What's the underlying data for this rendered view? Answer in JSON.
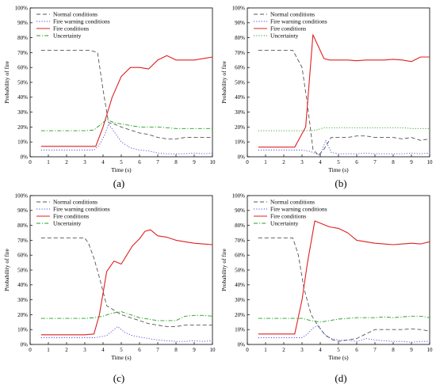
{
  "chart_data": [
    {
      "type": "line",
      "panel_label": "(a)",
      "xlabel": "Time (s)",
      "ylabel": "Probability of fire",
      "xlim": [
        0,
        10
      ],
      "ylim": [
        0,
        100
      ],
      "x_ticks": [
        "0",
        "1",
        "2",
        "3",
        "4",
        "5",
        "6",
        "7",
        "8",
        "9",
        "10"
      ],
      "y_ticks": [
        "0%",
        "10%",
        "20%",
        "30%",
        "40%",
        "50%",
        "60%",
        "70%",
        "80%",
        "90%",
        "100%"
      ],
      "legend_position": "top-left",
      "series": [
        {
          "name": "Normal conditions",
          "style": "dash",
          "color": "#555555",
          "x": [
            0.6,
            1,
            2,
            3,
            3.3,
            3.7,
            4.0,
            4.3,
            4.6,
            5,
            5.5,
            6,
            6.5,
            7,
            7.5,
            8,
            8.5,
            9,
            9.5,
            10
          ],
          "y": [
            71.5,
            71.5,
            71.5,
            71.5,
            71.5,
            70,
            45,
            23,
            22,
            20,
            18,
            16,
            15,
            13,
            12,
            12,
            13,
            13,
            13,
            13
          ]
        },
        {
          "name": "Fire warning conditions",
          "style": "dot",
          "color": "#4a4ad8",
          "x": [
            0.6,
            1,
            2,
            3,
            3.5,
            3.8,
            4.1,
            4.3,
            4.6,
            5,
            5.5,
            6,
            6.5,
            7,
            7.5,
            8,
            8.5,
            9,
            9.5,
            10
          ],
          "y": [
            4.5,
            4.5,
            4.5,
            4.5,
            4.5,
            8,
            15,
            22,
            17,
            10,
            6,
            4.5,
            4,
            2.5,
            2,
            2,
            2,
            2.5,
            2,
            2.5
          ]
        },
        {
          "name": "Fire conditions",
          "style": "solid",
          "color": "#e02020",
          "x": [
            0.6,
            1,
            2,
            3,
            3.6,
            4.0,
            4.5,
            5.0,
            5.5,
            6.0,
            6.5,
            7.0,
            7.5,
            8.0,
            8.5,
            9.0,
            9.5,
            10
          ],
          "y": [
            7,
            7,
            7,
            7,
            7,
            20,
            40,
            54,
            60,
            60,
            59,
            65,
            68,
            65,
            65,
            65,
            66,
            67
          ]
        },
        {
          "name": "Uncertainty",
          "style": "dashdot",
          "color": "#22a022",
          "x": [
            0.6,
            1,
            2,
            3,
            3.5,
            3.8,
            4.2,
            4.6,
            5,
            5.5,
            6,
            6.5,
            7,
            7.5,
            8,
            8.5,
            9,
            9.5,
            10
          ],
          "y": [
            17.5,
            17.5,
            17.5,
            17.5,
            18,
            21,
            25,
            23,
            22,
            21,
            20,
            20,
            20,
            19.5,
            19,
            19,
            19,
            19,
            19
          ]
        }
      ]
    },
    {
      "type": "line",
      "panel_label": "(b)",
      "xlabel": "Time (s)",
      "ylabel": "Probability of fire",
      "xlim": [
        0,
        10
      ],
      "ylim": [
        0,
        100
      ],
      "x_ticks": [
        "0",
        "1",
        "2",
        "3",
        "4",
        "5",
        "6",
        "7",
        "8",
        "9",
        "10"
      ],
      "y_ticks": [
        "0%",
        "10%",
        "20%",
        "30%",
        "40%",
        "50%",
        "60%",
        "70%",
        "80%",
        "90%",
        "100%"
      ],
      "legend_position": "top-left",
      "series": [
        {
          "name": "Normal conditions",
          "style": "dash",
          "color": "#555555",
          "x": [
            0.6,
            1,
            2,
            2.5,
            3,
            3.3,
            3.6,
            3.9,
            4.2,
            4.6,
            5,
            5.5,
            6,
            6.5,
            7,
            7.5,
            8,
            8.5,
            9,
            9.5,
            10
          ],
          "y": [
            71.5,
            71.5,
            71.5,
            71.5,
            60,
            35,
            5,
            1,
            5,
            13,
            13,
            13,
            14,
            14,
            13,
            13,
            13,
            12,
            13,
            11,
            12
          ]
        },
        {
          "name": "Fire warning conditions",
          "style": "dot",
          "color": "#4a4ad8",
          "x": [
            0.6,
            1,
            2,
            3,
            3.3,
            3.6,
            4.0,
            4.3,
            4.6,
            5,
            5.5,
            6,
            6.5,
            7,
            7.5,
            8,
            8.5,
            9,
            9.5,
            10
          ],
          "y": [
            4.5,
            4.5,
            4.5,
            4.5,
            4,
            3,
            1,
            11,
            3,
            2,
            2,
            2,
            2.5,
            2,
            2,
            2,
            2,
            2.5,
            2,
            2.5
          ]
        },
        {
          "name": "Fire conditions",
          "style": "solid",
          "color": "#e02020",
          "x": [
            0.6,
            1,
            2,
            2.6,
            3.2,
            3.6,
            3.9,
            4.2,
            4.5,
            5,
            5.5,
            6,
            6.5,
            7,
            7.5,
            8,
            8.5,
            9,
            9.5,
            10
          ],
          "y": [
            6.5,
            6.5,
            6.5,
            6.5,
            20,
            82,
            74,
            66,
            65,
            65,
            65,
            64.5,
            65,
            65,
            65,
            65.5,
            65,
            64,
            67,
            67
          ]
        },
        {
          "name": "Uncertainty",
          "style": "dot",
          "color": "#22a022",
          "x": [
            0.6,
            1,
            2,
            2.5,
            3,
            3.5,
            3.8,
            4.2,
            4.6,
            5,
            5.5,
            6,
            6.5,
            7,
            7.5,
            8,
            8.5,
            9,
            9.5,
            10
          ],
          "y": [
            17.5,
            17.5,
            17.5,
            17.5,
            17.5,
            17.5,
            18,
            19.5,
            19.5,
            19.5,
            19.5,
            19.5,
            19.5,
            19.5,
            19.5,
            19.5,
            19.5,
            19,
            19,
            19
          ]
        }
      ]
    },
    {
      "type": "line",
      "panel_label": "(c)",
      "xlabel": "Time (s)",
      "ylabel": "Probability of fire",
      "xlim": [
        0,
        10
      ],
      "ylim": [
        0,
        100
      ],
      "x_ticks": [
        "0",
        "1",
        "2",
        "3",
        "4",
        "5",
        "6",
        "7",
        "8",
        "9",
        "10"
      ],
      "y_ticks": [
        "0%",
        "10%",
        "20%",
        "30%",
        "40%",
        "50%",
        "60%",
        "70%",
        "80%",
        "90%",
        "100%"
      ],
      "legend_position": "top-left",
      "series": [
        {
          "name": "Normal conditions",
          "style": "dash",
          "color": "#555555",
          "x": [
            0.6,
            1,
            2,
            3,
            3.2,
            3.5,
            3.8,
            4.2,
            4.6,
            5,
            5.5,
            6,
            6.5,
            7,
            7.5,
            8,
            8.5,
            9,
            9.5,
            10
          ],
          "y": [
            71.5,
            71.5,
            71.5,
            71.5,
            68,
            58,
            45,
            26,
            23,
            20,
            18,
            16,
            14,
            13,
            12,
            12,
            13,
            13,
            13,
            13
          ]
        },
        {
          "name": "Fire warning conditions",
          "style": "dot",
          "color": "#4a4ad8",
          "x": [
            0.6,
            1,
            2,
            3,
            3.5,
            3.8,
            4.2,
            4.5,
            4.8,
            5.2,
            5.6,
            6,
            6.5,
            7,
            7.5,
            8,
            8.5,
            9,
            9.5,
            10
          ],
          "y": [
            4.5,
            4.5,
            4.5,
            4.5,
            4.5,
            5,
            6,
            9,
            12,
            8,
            6,
            5,
            4,
            3,
            2.5,
            2,
            2,
            2.5,
            2,
            2.5
          ]
        },
        {
          "name": "Fire conditions",
          "style": "solid",
          "color": "#e02020",
          "x": [
            0.6,
            1,
            2,
            3,
            3.5,
            3.8,
            4.2,
            4.6,
            5.0,
            5.3,
            5.6,
            6.0,
            6.3,
            6.6,
            7,
            7.5,
            8,
            8.5,
            9,
            9.5,
            10
          ],
          "y": [
            6.5,
            6.5,
            6.5,
            6.5,
            7,
            20,
            49,
            56,
            54,
            60,
            66,
            71,
            76,
            77,
            73,
            72,
            70,
            69,
            68,
            67.5,
            67
          ]
        },
        {
          "name": "Uncertainty",
          "style": "dashdot",
          "color": "#22a022",
          "x": [
            0.6,
            1,
            2,
            3,
            3.5,
            4,
            4.5,
            5,
            5.5,
            6,
            6.5,
            7,
            7.5,
            8,
            8.5,
            9,
            9.5,
            10
          ],
          "y": [
            17.5,
            17.5,
            17.5,
            17.5,
            18,
            19,
            21,
            22,
            20,
            18,
            17,
            16,
            16,
            16,
            19,
            19.5,
            19.5,
            19
          ]
        }
      ]
    },
    {
      "type": "line",
      "panel_label": "(d)",
      "xlabel": "Time (s)",
      "ylabel": "Probability of fire",
      "xlim": [
        0,
        10
      ],
      "ylim": [
        0,
        100
      ],
      "x_ticks": [
        "0",
        "1",
        "2",
        "3",
        "4",
        "5",
        "6",
        "7",
        "8",
        "9",
        "10"
      ],
      "y_ticks": [
        "0%",
        "10%",
        "20%",
        "30%",
        "40%",
        "50%",
        "60%",
        "70%",
        "80%",
        "90%",
        "100%"
      ],
      "legend_position": "top-left",
      "series": [
        {
          "name": "Normal conditions",
          "style": "dash",
          "color": "#555555",
          "x": [
            0.6,
            1,
            2,
            2.5,
            2.8,
            3.1,
            3.5,
            3.9,
            4.3,
            4.7,
            5,
            5.5,
            6,
            6.5,
            7,
            7.5,
            8,
            8.5,
            9,
            9.5,
            10
          ],
          "y": [
            71.5,
            71.5,
            71.5,
            71.5,
            60,
            38,
            20,
            12,
            6,
            3,
            2,
            3,
            4,
            7,
            10,
            10,
            10,
            10,
            10.5,
            10,
            9
          ]
        },
        {
          "name": "Fire warning conditions",
          "style": "dot",
          "color": "#4a4ad8",
          "x": [
            0.6,
            1,
            2,
            3,
            3.3,
            3.6,
            3.9,
            4.2,
            4.6,
            5,
            5.5,
            6,
            6.5,
            7,
            7.5,
            8,
            8.5,
            9,
            9.5,
            10
          ],
          "y": [
            4.5,
            4.5,
            4.5,
            4.5,
            7,
            11,
            13,
            7,
            4,
            3,
            3,
            2,
            4,
            3,
            2.5,
            2,
            2,
            1.5,
            2,
            2
          ]
        },
        {
          "name": "Fire conditions",
          "style": "solid",
          "color": "#e02020",
          "x": [
            0.6,
            1,
            2,
            2.6,
            3.0,
            3.3,
            3.7,
            4.1,
            4.5,
            5,
            5.5,
            6,
            6.5,
            7,
            7.5,
            8,
            8.5,
            9,
            9.5,
            10
          ],
          "y": [
            7,
            7,
            7,
            7,
            30,
            55,
            83,
            81,
            79,
            78,
            75,
            70,
            69,
            68,
            67.5,
            67,
            67.5,
            68,
            67.5,
            69
          ]
        },
        {
          "name": "Uncertainty",
          "style": "dashdot",
          "color": "#22a022",
          "x": [
            0.6,
            1,
            2,
            3,
            3.5,
            4,
            4.5,
            5,
            5.5,
            6,
            6.5,
            7,
            7.5,
            8,
            8.5,
            9,
            9.5,
            10
          ],
          "y": [
            17.5,
            17.5,
            17.5,
            17.5,
            16,
            15,
            16,
            17,
            17.5,
            18,
            18,
            18,
            18.5,
            18,
            18.5,
            19,
            19,
            18
          ]
        }
      ]
    }
  ]
}
